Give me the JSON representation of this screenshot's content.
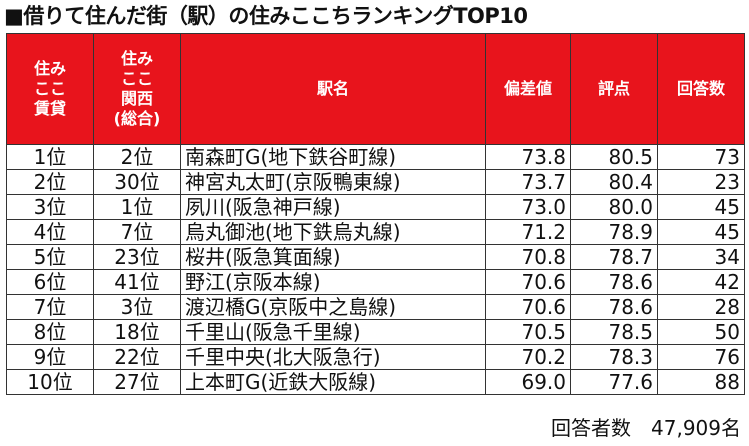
{
  "title": "■借りて住んだ街（駅）の住みここちランキングTOP10",
  "headers": {
    "rent_rank": [
      "住み",
      "ここ",
      "賃貸"
    ],
    "kansai_rank": [
      "住み",
      "ここ",
      "関西",
      "(総合)"
    ],
    "station": "駅名",
    "deviation": "偏差値",
    "score": "評点",
    "responses": "回答数"
  },
  "rows": [
    {
      "rent_rank": "1位",
      "kansai_rank": "2位",
      "station": "南森町G(地下鉄谷町線)",
      "deviation": "73.8",
      "score": "80.5",
      "responses": "73"
    },
    {
      "rent_rank": "2位",
      "kansai_rank": "30位",
      "station": "神宮丸太町(京阪鴨東線)",
      "deviation": "73.7",
      "score": "80.4",
      "responses": "23"
    },
    {
      "rent_rank": "3位",
      "kansai_rank": "1位",
      "station": "夙川(阪急神戸線)",
      "deviation": "73.0",
      "score": "80.0",
      "responses": "45"
    },
    {
      "rent_rank": "4位",
      "kansai_rank": "7位",
      "station": "烏丸御池(地下鉄烏丸線)",
      "deviation": "71.2",
      "score": "78.9",
      "responses": "45"
    },
    {
      "rent_rank": "5位",
      "kansai_rank": "23位",
      "station": "桜井(阪急箕面線)",
      "deviation": "70.8",
      "score": "78.7",
      "responses": "34"
    },
    {
      "rent_rank": "6位",
      "kansai_rank": "41位",
      "station": "野江(京阪本線)",
      "deviation": "70.6",
      "score": "78.6",
      "responses": "42"
    },
    {
      "rent_rank": "7位",
      "kansai_rank": "3位",
      "station": "渡辺橋G(京阪中之島線)",
      "deviation": "70.6",
      "score": "78.6",
      "responses": "28"
    },
    {
      "rent_rank": "8位",
      "kansai_rank": "18位",
      "station": "千里山(阪急千里線)",
      "deviation": "70.5",
      "score": "78.5",
      "responses": "50"
    },
    {
      "rent_rank": "9位",
      "kansai_rank": "22位",
      "station": "千里中央(北大阪急行)",
      "deviation": "70.2",
      "score": "78.3",
      "responses": "76"
    },
    {
      "rent_rank": "10位",
      "kansai_rank": "27位",
      "station": "上本町G(近鉄大阪線)",
      "deviation": "69.0",
      "score": "77.6",
      "responses": "88"
    }
  ],
  "footer": "回答者数　47,909名",
  "colors": {
    "header_bg": "#e8141c",
    "header_text": "#ffffff",
    "border": "#333333"
  }
}
